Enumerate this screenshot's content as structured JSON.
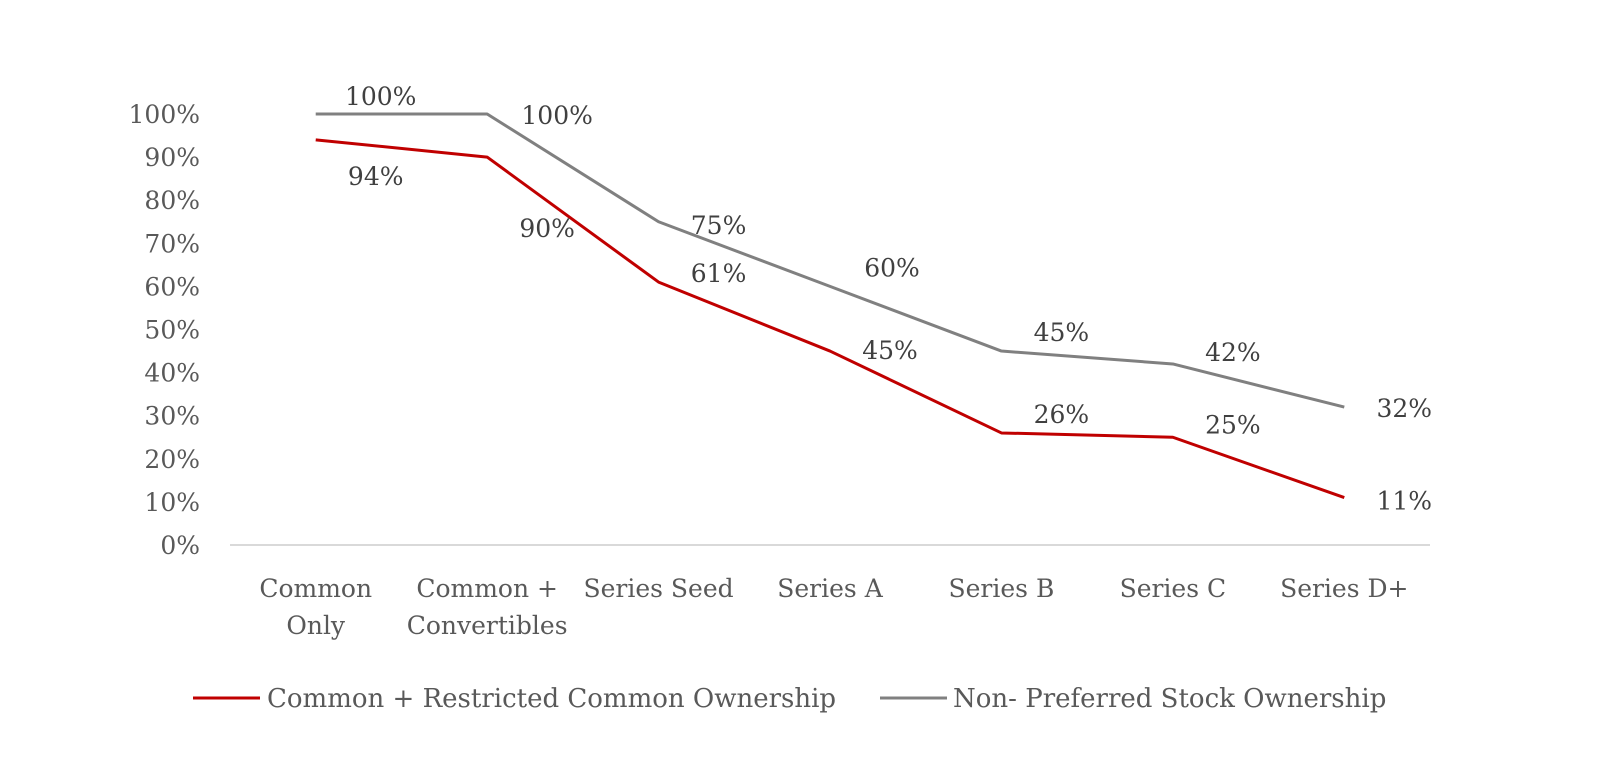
{
  "chart_data": {
    "type": "line",
    "title": "",
    "xlabel": "",
    "ylabel": "",
    "categories": [
      [
        "Common",
        "Only"
      ],
      [
        "Common +",
        "Convertibles"
      ],
      [
        "Series Seed"
      ],
      [
        "Series A"
      ],
      [
        "Series B"
      ],
      [
        "Series C"
      ],
      [
        "Series D+"
      ]
    ],
    "series": [
      {
        "name": "Common + Restricted Common Ownership",
        "color": "#c00000",
        "values": [
          94,
          90,
          61,
          45,
          26,
          25,
          11
        ],
        "labels": [
          "94%",
          "90%",
          "61%",
          "45%",
          "26%",
          "25%",
          "11%"
        ]
      },
      {
        "name": "Non- Preferred Stock Ownership",
        "color": "#808080",
        "values": [
          100,
          100,
          75,
          60,
          45,
          42,
          32
        ],
        "labels": [
          "100%",
          "100%",
          "75%",
          "60%",
          "45%",
          "42%",
          "32%"
        ]
      }
    ],
    "ylim": [
      0,
      100
    ],
    "yticks": [
      "0%",
      "10%",
      "20%",
      "30%",
      "40%",
      "50%",
      "60%",
      "70%",
      "80%",
      "90%",
      "100%"
    ],
    "grid": false,
    "legend": "bottom",
    "axis_color": "#d9d9d9"
  }
}
